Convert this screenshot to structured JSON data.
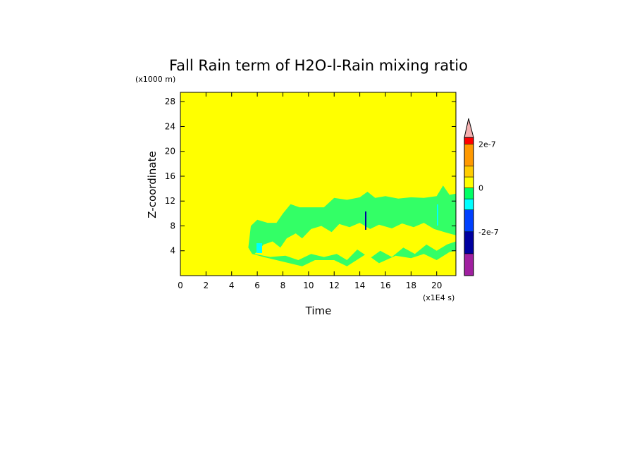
{
  "chart_data": {
    "type": "heatmap",
    "title": "Fall Rain term of H2O-l-Rain mixing ratio",
    "xlabel": "Time",
    "ylabel": "Z-coordinate",
    "x_unit": "(x1E4 s)",
    "y_unit": "(x1000 m)",
    "xlim": [
      0,
      21.5
    ],
    "ylim": [
      0,
      29.5
    ],
    "x_ticks": [
      "0",
      "2",
      "4",
      "6",
      "8",
      "10",
      "12",
      "14",
      "16",
      "18",
      "20"
    ],
    "y_ticks": [
      "4",
      "8",
      "12",
      "16",
      "20",
      "24",
      "28"
    ],
    "background_color": "#ffff00",
    "colorbar": {
      "labels": [
        {
          "text": "2e-7",
          "value": 2e-07
        },
        {
          "text": "0",
          "value": 0
        },
        {
          "text": "-2e-7",
          "value": -2e-07
        }
      ],
      "levels": [
        {
          "color": "#a020a0",
          "from": -4e-07,
          "to": -3e-07
        },
        {
          "color": "#0000a0",
          "from": -3e-07,
          "to": -2e-07
        },
        {
          "color": "#0040ff",
          "from": -2e-07,
          "to": -1e-07
        },
        {
          "color": "#00ffff",
          "from": -1e-07,
          "to": -5e-08
        },
        {
          "color": "#00ff66",
          "from": -5e-08,
          "to": 0
        },
        {
          "color": "#ffff00",
          "from": 0,
          "to": 5e-08
        },
        {
          "color": "#ffcc00",
          "from": 5e-08,
          "to": 1e-07
        },
        {
          "color": "#ff9900",
          "from": 1e-07,
          "to": 2e-07
        },
        {
          "color": "#ff0000",
          "from": 2e-07,
          "to": 2.3e-07
        }
      ],
      "over_color": "#f4b0b0"
    },
    "regions": [
      {
        "name": "negative-band",
        "color": "#33ff66",
        "outline": [
          [
            5.3,
            4.5
          ],
          [
            5.5,
            8.0
          ],
          [
            6.0,
            9.0
          ],
          [
            6.8,
            8.5
          ],
          [
            7.5,
            8.5
          ],
          [
            8.0,
            10.0
          ],
          [
            8.6,
            11.5
          ],
          [
            9.3,
            11.0
          ],
          [
            10.0,
            11.0
          ],
          [
            11.2,
            11.0
          ],
          [
            12.0,
            12.5
          ],
          [
            13.0,
            12.2
          ],
          [
            14.0,
            12.6
          ],
          [
            14.6,
            13.5
          ],
          [
            15.2,
            12.5
          ],
          [
            16.0,
            12.8
          ],
          [
            17.0,
            12.4
          ],
          [
            18.0,
            12.6
          ],
          [
            19.0,
            12.5
          ],
          [
            20.0,
            12.8
          ],
          [
            20.5,
            14.5
          ],
          [
            21.0,
            13.0
          ],
          [
            21.5,
            13.2
          ],
          [
            21.5,
            4.0
          ],
          [
            21.0,
            3.8
          ],
          [
            20.0,
            2.5
          ],
          [
            19.0,
            3.5
          ],
          [
            18.0,
            2.8
          ],
          [
            16.8,
            3.2
          ],
          [
            15.5,
            2.0
          ],
          [
            14.5,
            3.5
          ],
          [
            13.0,
            1.5
          ],
          [
            12.0,
            2.5
          ],
          [
            10.5,
            2.5
          ],
          [
            9.5,
            1.5
          ],
          [
            8.5,
            2.0
          ],
          [
            7.5,
            2.5
          ],
          [
            6.5,
            3.0
          ],
          [
            5.6,
            3.5
          ]
        ]
      },
      {
        "name": "positive-gap",
        "color": "#ffff00",
        "outline": [
          [
            5.8,
            3.5
          ],
          [
            6.5,
            5.0
          ],
          [
            7.2,
            5.5
          ],
          [
            7.8,
            4.5
          ],
          [
            8.3,
            6.0
          ],
          [
            9.0,
            6.8
          ],
          [
            9.5,
            6.0
          ],
          [
            10.2,
            7.5
          ],
          [
            11.0,
            8.0
          ],
          [
            11.8,
            7.0
          ],
          [
            12.4,
            8.3
          ],
          [
            13.2,
            7.8
          ],
          [
            14.0,
            8.5
          ],
          [
            14.8,
            7.5
          ],
          [
            15.5,
            8.2
          ],
          [
            16.5,
            7.6
          ],
          [
            17.3,
            8.4
          ],
          [
            18.2,
            7.8
          ],
          [
            19.0,
            8.5
          ],
          [
            19.8,
            7.5
          ],
          [
            20.6,
            7.0
          ],
          [
            21.5,
            6.5
          ],
          [
            21.5,
            5.5
          ],
          [
            20.8,
            5.0
          ],
          [
            20.0,
            4.0
          ],
          [
            19.2,
            5.0
          ],
          [
            18.3,
            3.5
          ],
          [
            17.4,
            4.5
          ],
          [
            16.5,
            3.0
          ],
          [
            15.6,
            4.0
          ],
          [
            14.8,
            2.8
          ],
          [
            13.8,
            4.2
          ],
          [
            13.0,
            2.5
          ],
          [
            12.2,
            3.5
          ],
          [
            11.2,
            3.0
          ],
          [
            10.2,
            3.5
          ],
          [
            9.2,
            2.5
          ],
          [
            8.2,
            3.2
          ],
          [
            7.0,
            3.0
          ]
        ]
      }
    ]
  }
}
